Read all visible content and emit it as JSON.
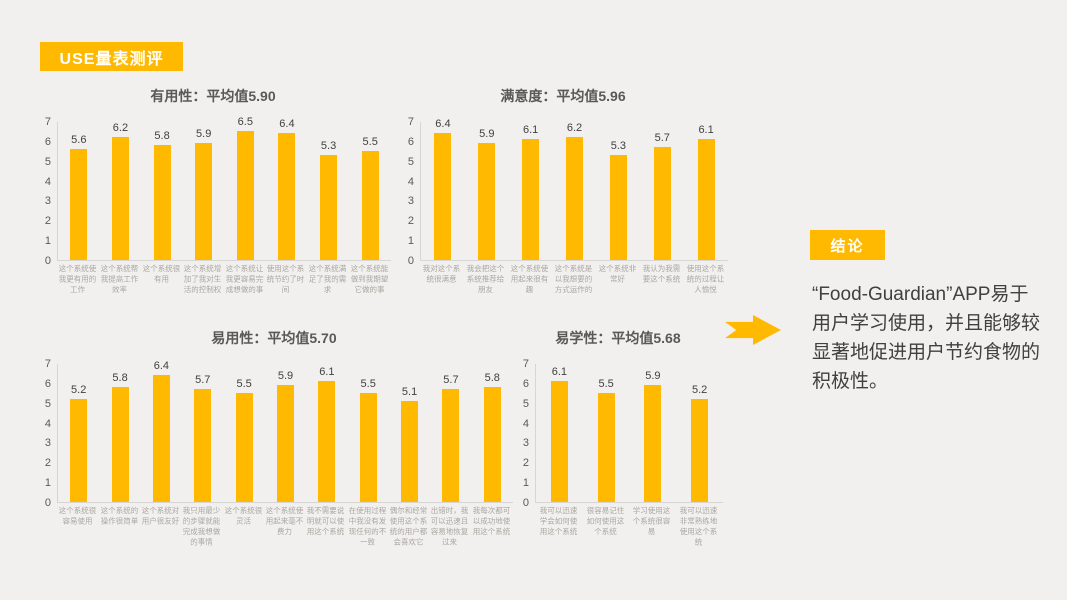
{
  "header": {
    "badge": "USE量表测评"
  },
  "conclusion": {
    "badge": "结论",
    "text": "“Food-Guardian”APP易于用户学习使用，并且能够较显著地促进用户节约食物的积极性。"
  },
  "colors": {
    "accent": "#FFB900",
    "background": "#F1F0EE",
    "bar": "#FFB900",
    "axis_line": "#D8D6D2",
    "title_text": "#595959",
    "value_text": "#404040",
    "category_text": "#AAA7A1"
  },
  "chart_data": [
    {
      "type": "bar",
      "title": "有用性：平均值5.90",
      "categories": [
        "这个系统使我更有用的工作",
        "这个系统帮我提高工作效率",
        "这个系统很有用",
        "这个系统增加了我对生活的控制权",
        "这个系统让我更容易完成想做的事",
        "使用这个系统节约了时间",
        "这个系统满足了我的需求",
        "这个系统能做到我期望它做的事"
      ],
      "values": [
        5.6,
        6.2,
        5.8,
        5.9,
        6.5,
        6.4,
        5.3,
        5.5
      ],
      "xlabel": "",
      "ylabel": "",
      "ylim": [
        0,
        7
      ],
      "yticks": [
        0,
        1,
        2,
        3,
        4,
        5,
        6,
        7
      ],
      "grid": false,
      "legend": false,
      "value_labels": true
    },
    {
      "type": "bar",
      "title": "满意度：平均值5.96",
      "categories": [
        "我对这个系统很满意",
        "我会把这个系统推荐给朋友",
        "这个系统使用起来很有趣",
        "这个系统是以我想要的方式运作的",
        "这个系统非常好",
        "我认为我需要这个系统",
        "使用这个系统的过程让人愉悦"
      ],
      "values": [
        6.4,
        5.9,
        6.1,
        6.2,
        5.3,
        5.7,
        6.1
      ],
      "xlabel": "",
      "ylabel": "",
      "ylim": [
        0,
        7
      ],
      "yticks": [
        0,
        1,
        2,
        3,
        4,
        5,
        6,
        7
      ],
      "grid": false,
      "legend": false,
      "value_labels": true
    },
    {
      "type": "bar",
      "title": "易用性：平均值5.70",
      "categories": [
        "这个系统很容易使用",
        "这个系统的操作很简单",
        "这个系统对用户很友好",
        "我只用最少的步骤就能完成我想做的事情",
        "这个系统很灵活",
        "这个系统使用起来毫不费力",
        "我不需要说明就可以使用这个系统",
        "在使用过程中我没有发现任何的不一致",
        "偶尔和经常使用这个系统的用户都会喜欢它",
        "出错时，我可以迅速且容易地恢复过来",
        "我每次都可以成功地使用这个系统"
      ],
      "values": [
        5.2,
        5.8,
        6.4,
        5.7,
        5.5,
        5.9,
        6.1,
        5.5,
        5.1,
        5.7,
        5.8
      ],
      "xlabel": "",
      "ylabel": "",
      "ylim": [
        0,
        7
      ],
      "yticks": [
        0,
        1,
        2,
        3,
        4,
        5,
        6,
        7
      ],
      "grid": false,
      "legend": false,
      "value_labels": true
    },
    {
      "type": "bar",
      "title": "易学性：平均值5.68",
      "categories": [
        "我可以迅速学会如何使用这个系统",
        "很容易记住如何使用这个系统",
        "学习使用这个系统很容易",
        "我可以迅速非常熟练地使用这个系统"
      ],
      "values": [
        6.1,
        5.5,
        5.9,
        5.2
      ],
      "xlabel": "",
      "ylabel": "",
      "ylim": [
        0,
        7
      ],
      "yticks": [
        0,
        1,
        2,
        3,
        4,
        5,
        6,
        7
      ],
      "grid": false,
      "legend": false,
      "value_labels": true
    }
  ]
}
